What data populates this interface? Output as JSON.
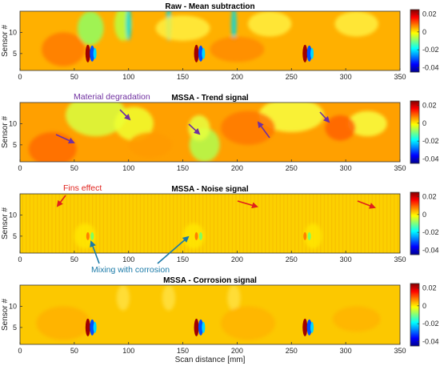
{
  "chart_data": [
    {
      "type": "heatmap",
      "title": "Raw - Mean subtraction",
      "xlabel": "",
      "ylabel": "Sensor #",
      "xlim": [
        0,
        350
      ],
      "ylim": [
        1,
        15
      ],
      "x_ticks": [
        "0",
        "50",
        "100",
        "150",
        "200",
        "250",
        "300",
        "350"
      ],
      "y_ticks": [
        "5",
        "10"
      ],
      "clim": [
        -0.045,
        0.025
      ],
      "colorbar_ticks": [
        "0.02",
        "0",
        "-0.02",
        "-0.04"
      ],
      "annotations": []
    },
    {
      "type": "heatmap",
      "title": "MSSA - Trend signal",
      "xlabel": "",
      "ylabel": "Sensor #",
      "xlim": [
        0,
        350
      ],
      "ylim": [
        1,
        15
      ],
      "x_ticks": [
        "0",
        "50",
        "100",
        "150",
        "200",
        "250",
        "300",
        "350"
      ],
      "y_ticks": [
        "5",
        "10"
      ],
      "clim": [
        -0.045,
        0.025
      ],
      "colorbar_ticks": [
        "0.02",
        "0",
        "-0.02",
        "-0.04"
      ],
      "annotations": [
        {
          "text": "Material degradation",
          "color": "#7030a0"
        }
      ]
    },
    {
      "type": "heatmap",
      "title": "MSSA - Noise signal",
      "xlabel": "",
      "ylabel": "Sensor #",
      "xlim": [
        0,
        350
      ],
      "ylim": [
        1,
        15
      ],
      "x_ticks": [
        "0",
        "50",
        "100",
        "150",
        "200",
        "250",
        "300",
        "350"
      ],
      "y_ticks": [
        "5",
        "10"
      ],
      "clim": [
        -0.045,
        0.025
      ],
      "colorbar_ticks": [
        "0.02",
        "0",
        "-0.02",
        "-0.04"
      ],
      "annotations": [
        {
          "text": "Fins effect",
          "color": "#e0201b"
        },
        {
          "text": "Mixing with corrosion",
          "color": "#1a7aa8"
        }
      ]
    },
    {
      "type": "heatmap",
      "title": "MSSA - Corrosion signal",
      "xlabel": "Scan distance [mm]",
      "ylabel": "Sensor #",
      "xlim": [
        0,
        350
      ],
      "ylim": [
        1,
        15
      ],
      "x_ticks": [
        "0",
        "50",
        "100",
        "150",
        "200",
        "250",
        "300",
        "350"
      ],
      "y_ticks": [
        "5",
        "10"
      ],
      "clim": [
        -0.045,
        0.025
      ],
      "colorbar_ticks": [
        "0.02",
        "0",
        "-0.02",
        "-0.04"
      ],
      "annotations": []
    }
  ]
}
